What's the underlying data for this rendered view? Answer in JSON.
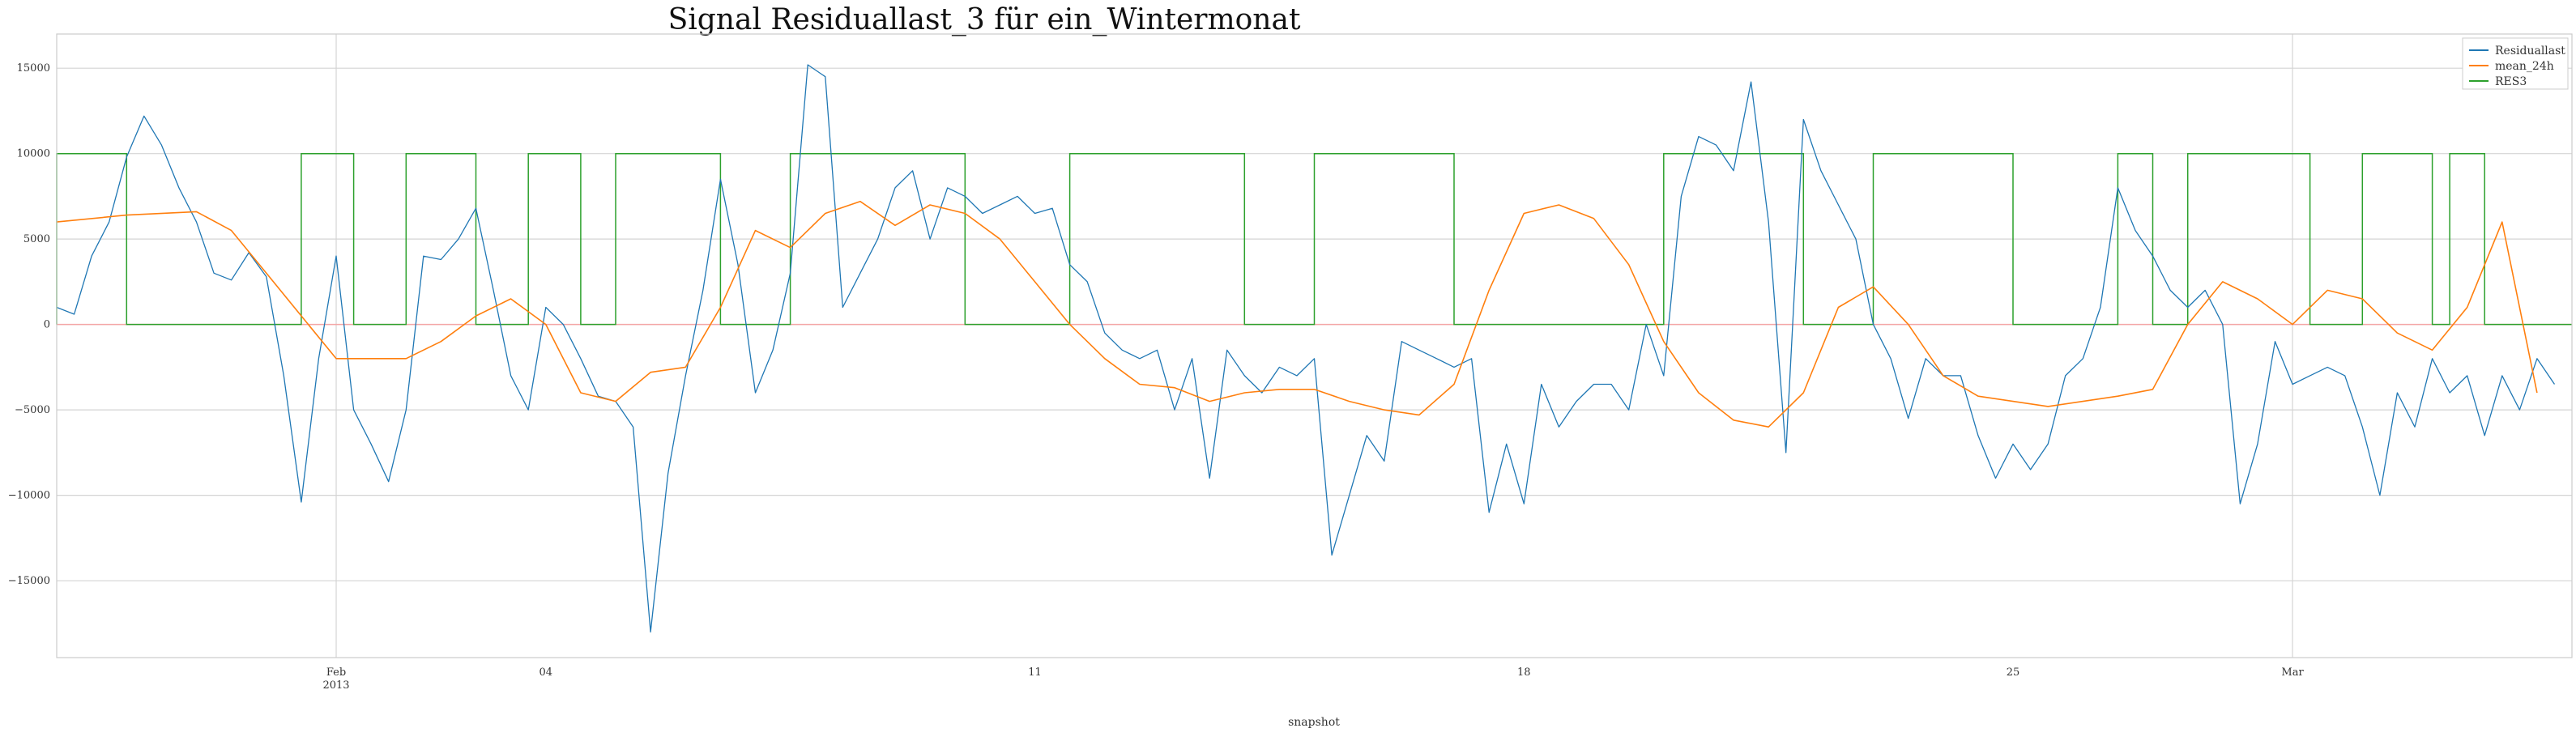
{
  "chart_data": {
    "type": "line",
    "title": "Signal Residuallast_3 für ein_Wintermonat",
    "xlabel": "snapshot",
    "ylabel": "",
    "x_range": [
      "2013-01-28",
      "2013-03-04"
    ],
    "ylim": [
      -19500,
      17000
    ],
    "yticks": [
      15000,
      10000,
      5000,
      0,
      -5000,
      -10000,
      -15000
    ],
    "ytick_labels": [
      "15000",
      "10000",
      "5000",
      "0",
      "−5000",
      "−10000",
      "−15000"
    ],
    "xticks": [
      {
        "date": "2013-02-01",
        "label": "Feb",
        "sublabel": "2013",
        "major": true
      },
      {
        "date": "2013-02-04",
        "label": "04",
        "sublabel": "",
        "major": false
      },
      {
        "date": "2013-02-11",
        "label": "11",
        "sublabel": "",
        "major": false
      },
      {
        "date": "2013-02-18",
        "label": "18",
        "sublabel": "",
        "major": false
      },
      {
        "date": "2013-02-25",
        "label": "25",
        "sublabel": "",
        "major": false
      },
      {
        "date": "2013-03-01",
        "label": "Mar",
        "sublabel": "",
        "major": true
      }
    ],
    "grid": true,
    "legend_position": "top-right",
    "series": [
      {
        "name": "Residuallast",
        "color": "#1f77b4",
        "points": [
          [
            "2013-01-28T00:00",
            1000
          ],
          [
            "2013-01-28T06:00",
            600
          ],
          [
            "2013-01-28T12:00",
            4000
          ],
          [
            "2013-01-28T18:00",
            6000
          ],
          [
            "2013-01-29T00:00",
            9800
          ],
          [
            "2013-01-29T06:00",
            12200
          ],
          [
            "2013-01-29T12:00",
            10500
          ],
          [
            "2013-01-29T18:00",
            8000
          ],
          [
            "2013-01-30T00:00",
            6000
          ],
          [
            "2013-01-30T06:00",
            3000
          ],
          [
            "2013-01-30T12:00",
            2600
          ],
          [
            "2013-01-30T18:00",
            4200
          ],
          [
            "2013-01-31T00:00",
            2800
          ],
          [
            "2013-01-31T06:00",
            -3000
          ],
          [
            "2013-01-31T12:00",
            -10400
          ],
          [
            "2013-01-31T18:00",
            -2000
          ],
          [
            "2013-02-01T00:00",
            4000
          ],
          [
            "2013-02-01T06:00",
            -5000
          ],
          [
            "2013-02-01T12:00",
            -7000
          ],
          [
            "2013-02-01T18:00",
            -9200
          ],
          [
            "2013-02-02T00:00",
            -5000
          ],
          [
            "2013-02-02T06:00",
            4000
          ],
          [
            "2013-02-02T12:00",
            3800
          ],
          [
            "2013-02-02T18:00",
            5000
          ],
          [
            "2013-02-03T00:00",
            6800
          ],
          [
            "2013-02-03T06:00",
            2000
          ],
          [
            "2013-02-03T12:00",
            -3000
          ],
          [
            "2013-02-03T18:00",
            -5000
          ],
          [
            "2013-02-04T00:00",
            1000
          ],
          [
            "2013-02-04T06:00",
            0
          ],
          [
            "2013-02-04T12:00",
            -2000
          ],
          [
            "2013-02-04T18:00",
            -4200
          ],
          [
            "2013-02-05T00:00",
            -4500
          ],
          [
            "2013-02-05T06:00",
            -6000
          ],
          [
            "2013-02-05T12:00",
            -18000
          ],
          [
            "2013-02-05T18:00",
            -8700
          ],
          [
            "2013-02-06T00:00",
            -3000
          ],
          [
            "2013-02-06T06:00",
            2000
          ],
          [
            "2013-02-06T12:00",
            8500
          ],
          [
            "2013-02-06T18:00",
            3500
          ],
          [
            "2013-02-07T00:00",
            -4000
          ],
          [
            "2013-02-07T06:00",
            -1500
          ],
          [
            "2013-02-07T12:00",
            3000
          ],
          [
            "2013-02-07T18:00",
            15200
          ],
          [
            "2013-02-08T00:00",
            14500
          ],
          [
            "2013-02-08T06:00",
            1000
          ],
          [
            "2013-02-08T12:00",
            3000
          ],
          [
            "2013-02-08T18:00",
            5000
          ],
          [
            "2013-02-09T00:00",
            8000
          ],
          [
            "2013-02-09T06:00",
            9000
          ],
          [
            "2013-02-09T12:00",
            5000
          ],
          [
            "2013-02-09T18:00",
            8000
          ],
          [
            "2013-02-10T00:00",
            7500
          ],
          [
            "2013-02-10T06:00",
            6500
          ],
          [
            "2013-02-10T12:00",
            7000
          ],
          [
            "2013-02-10T18:00",
            7500
          ],
          [
            "2013-02-11T00:00",
            6500
          ],
          [
            "2013-02-11T06:00",
            6800
          ],
          [
            "2013-02-11T12:00",
            3500
          ],
          [
            "2013-02-11T18:00",
            2500
          ],
          [
            "2013-02-12T00:00",
            -500
          ],
          [
            "2013-02-12T06:00",
            -1500
          ],
          [
            "2013-02-12T12:00",
            -2000
          ],
          [
            "2013-02-12T18:00",
            -1500
          ],
          [
            "2013-02-13T00:00",
            -5000
          ],
          [
            "2013-02-13T06:00",
            -2000
          ],
          [
            "2013-02-13T12:00",
            -9000
          ],
          [
            "2013-02-13T18:00",
            -1500
          ],
          [
            "2013-02-14T00:00",
            -3000
          ],
          [
            "2013-02-14T06:00",
            -4000
          ],
          [
            "2013-02-14T12:00",
            -2500
          ],
          [
            "2013-02-14T18:00",
            -3000
          ],
          [
            "2013-02-15T00:00",
            -2000
          ],
          [
            "2013-02-15T06:00",
            -13500
          ],
          [
            "2013-02-15T12:00",
            -10000
          ],
          [
            "2013-02-15T18:00",
            -6500
          ],
          [
            "2013-02-16T00:00",
            -8000
          ],
          [
            "2013-02-16T06:00",
            -1000
          ],
          [
            "2013-02-16T12:00",
            -1500
          ],
          [
            "2013-02-16T18:00",
            -2000
          ],
          [
            "2013-02-17T00:00",
            -2500
          ],
          [
            "2013-02-17T06:00",
            -2000
          ],
          [
            "2013-02-17T12:00",
            -11000
          ],
          [
            "2013-02-17T18:00",
            -7000
          ],
          [
            "2013-02-18T00:00",
            -10500
          ],
          [
            "2013-02-18T06:00",
            -3500
          ],
          [
            "2013-02-18T12:00",
            -6000
          ],
          [
            "2013-02-18T18:00",
            -4500
          ],
          [
            "2013-02-19T00:00",
            -3500
          ],
          [
            "2013-02-19T06:00",
            -3500
          ],
          [
            "2013-02-19T12:00",
            -5000
          ],
          [
            "2013-02-19T18:00",
            0
          ],
          [
            "2013-02-20T00:00",
            -3000
          ],
          [
            "2013-02-20T06:00",
            7500
          ],
          [
            "2013-02-20T12:00",
            11000
          ],
          [
            "2013-02-20T18:00",
            10500
          ],
          [
            "2013-02-21T00:00",
            9000
          ],
          [
            "2013-02-21T06:00",
            14200
          ],
          [
            "2013-02-21T12:00",
            6000
          ],
          [
            "2013-02-21T18:00",
            -7500
          ],
          [
            "2013-02-22T00:00",
            12000
          ],
          [
            "2013-02-22T06:00",
            9000
          ],
          [
            "2013-02-22T12:00",
            7000
          ],
          [
            "2013-02-22T18:00",
            5000
          ],
          [
            "2013-02-23T00:00",
            0
          ],
          [
            "2013-02-23T06:00",
            -2000
          ],
          [
            "2013-02-23T12:00",
            -5500
          ],
          [
            "2013-02-23T18:00",
            -2000
          ],
          [
            "2013-02-24T00:00",
            -3000
          ],
          [
            "2013-02-24T06:00",
            -3000
          ],
          [
            "2013-02-24T12:00",
            -6500
          ],
          [
            "2013-02-24T18:00",
            -9000
          ],
          [
            "2013-02-25T00:00",
            -7000
          ],
          [
            "2013-02-25T06:00",
            -8500
          ],
          [
            "2013-02-25T12:00",
            -7000
          ],
          [
            "2013-02-25T18:00",
            -3000
          ],
          [
            "2013-02-26T00:00",
            -2000
          ],
          [
            "2013-02-26T06:00",
            1000
          ],
          [
            "2013-02-26T12:00",
            8000
          ],
          [
            "2013-02-26T18:00",
            5500
          ],
          [
            "2013-02-27T00:00",
            4000
          ],
          [
            "2013-02-27T06:00",
            2000
          ],
          [
            "2013-02-27T12:00",
            1000
          ],
          [
            "2013-02-27T18:00",
            2000
          ],
          [
            "2013-02-28T00:00",
            0
          ],
          [
            "2013-02-28T06:00",
            -10500
          ],
          [
            "2013-02-28T12:00",
            -7000
          ],
          [
            "2013-02-28T18:00",
            -1000
          ],
          [
            "2013-03-01T00:00",
            -3500
          ],
          [
            "2013-03-01T06:00",
            -3000
          ],
          [
            "2013-03-01T12:00",
            -2500
          ],
          [
            "2013-03-01T18:00",
            -3000
          ],
          [
            "2013-03-02T00:00",
            -6000
          ],
          [
            "2013-03-02T06:00",
            -10000
          ],
          [
            "2013-03-02T12:00",
            -4000
          ],
          [
            "2013-03-02T18:00",
            -6000
          ],
          [
            "2013-03-03T00:00",
            -2000
          ],
          [
            "2013-03-03T06:00",
            -4000
          ],
          [
            "2013-03-03T12:00",
            -3000
          ],
          [
            "2013-03-03T18:00",
            -6500
          ],
          [
            "2013-03-04T00:00",
            -3000
          ],
          [
            "2013-03-04T06:00",
            -5000
          ],
          [
            "2013-03-04T12:00",
            -2000
          ],
          [
            "2013-03-04T18:00",
            -3500
          ]
        ]
      },
      {
        "name": "mean_24h",
        "color": "#ff7f0e",
        "points": [
          [
            "2013-01-28T00:00",
            6000
          ],
          [
            "2013-01-29T00:00",
            6400
          ],
          [
            "2013-01-30T00:00",
            6600
          ],
          [
            "2013-01-30T12:00",
            5500
          ],
          [
            "2013-01-31T00:00",
            3000
          ],
          [
            "2013-02-01T00:00",
            -2000
          ],
          [
            "2013-02-02T00:00",
            -2000
          ],
          [
            "2013-02-02T12:00",
            -1000
          ],
          [
            "2013-02-03T00:00",
            500
          ],
          [
            "2013-02-03T12:00",
            1500
          ],
          [
            "2013-02-04T00:00",
            0
          ],
          [
            "2013-02-04T12:00",
            -4000
          ],
          [
            "2013-02-05T00:00",
            -4500
          ],
          [
            "2013-02-05T12:00",
            -2800
          ],
          [
            "2013-02-06T00:00",
            -2500
          ],
          [
            "2013-02-06T12:00",
            1000
          ],
          [
            "2013-02-07T00:00",
            5500
          ],
          [
            "2013-02-07T12:00",
            4500
          ],
          [
            "2013-02-08T00:00",
            6500
          ],
          [
            "2013-02-08T12:00",
            7200
          ],
          [
            "2013-02-09T00:00",
            5800
          ],
          [
            "2013-02-09T12:00",
            7000
          ],
          [
            "2013-02-10T00:00",
            6500
          ],
          [
            "2013-02-10T12:00",
            5000
          ],
          [
            "2013-02-11T00:00",
            2500
          ],
          [
            "2013-02-11T12:00",
            0
          ],
          [
            "2013-02-12T00:00",
            -2000
          ],
          [
            "2013-02-12T12:00",
            -3500
          ],
          [
            "2013-02-13T00:00",
            -3700
          ],
          [
            "2013-02-13T12:00",
            -4500
          ],
          [
            "2013-02-14T00:00",
            -4000
          ],
          [
            "2013-02-14T12:00",
            -3800
          ],
          [
            "2013-02-15T00:00",
            -3800
          ],
          [
            "2013-02-15T12:00",
            -4500
          ],
          [
            "2013-02-16T00:00",
            -5000
          ],
          [
            "2013-02-16T12:00",
            -5300
          ],
          [
            "2013-02-17T00:00",
            -3500
          ],
          [
            "2013-02-17T12:00",
            2000
          ],
          [
            "2013-02-18T00:00",
            6500
          ],
          [
            "2013-02-18T12:00",
            7000
          ],
          [
            "2013-02-19T00:00",
            6200
          ],
          [
            "2013-02-19T12:00",
            3500
          ],
          [
            "2013-02-20T00:00",
            -1000
          ],
          [
            "2013-02-20T12:00",
            -4000
          ],
          [
            "2013-02-21T00:00",
            -5600
          ],
          [
            "2013-02-21T12:00",
            -6000
          ],
          [
            "2013-02-22T00:00",
            -4000
          ],
          [
            "2013-02-22T12:00",
            1000
          ],
          [
            "2013-02-23T00:00",
            2200
          ],
          [
            "2013-02-23T12:00",
            0
          ],
          [
            "2013-02-24T00:00",
            -3000
          ],
          [
            "2013-02-24T12:00",
            -4200
          ],
          [
            "2013-02-25T00:00",
            -4500
          ],
          [
            "2013-02-25T12:00",
            -4800
          ],
          [
            "2013-02-26T00:00",
            -4500
          ],
          [
            "2013-02-26T12:00",
            -4200
          ],
          [
            "2013-02-27T00:00",
            -3800
          ],
          [
            "2013-02-27T12:00",
            0
          ],
          [
            "2013-02-28T00:00",
            2500
          ],
          [
            "2013-02-28T12:00",
            1500
          ],
          [
            "2013-03-01T00:00",
            0
          ],
          [
            "2013-03-01T12:00",
            2000
          ],
          [
            "2013-03-02T00:00",
            1500
          ],
          [
            "2013-03-02T12:00",
            -500
          ],
          [
            "2013-03-03T00:00",
            -1500
          ],
          [
            "2013-03-03T12:00",
            1000
          ],
          [
            "2013-03-04T00:00",
            6000
          ],
          [
            "2013-03-04T12:00",
            -4000
          ]
        ]
      },
      {
        "name": "RES3",
        "color": "#2ca02c",
        "high": 10000,
        "low": 0,
        "high_intervals": [
          [
            "2013-01-28T00:00",
            "2013-01-29T00:00"
          ],
          [
            "2013-01-31T12:00",
            "2013-02-01T06:00"
          ],
          [
            "2013-02-02T00:00",
            "2013-02-03T00:00"
          ],
          [
            "2013-02-03T18:00",
            "2013-02-04T12:00"
          ],
          [
            "2013-02-05T00:00",
            "2013-02-06T12:00"
          ],
          [
            "2013-02-07T12:00",
            "2013-02-10T00:00"
          ],
          [
            "2013-02-11T12:00",
            "2013-02-14T00:00"
          ],
          [
            "2013-02-15T00:00",
            "2013-02-17T00:00"
          ],
          [
            "2013-02-20T00:00",
            "2013-02-22T00:00"
          ],
          [
            "2013-02-23T00:00",
            "2013-02-25T00:00"
          ],
          [
            "2013-02-26T12:00",
            "2013-02-27T00:00"
          ],
          [
            "2013-02-27T12:00",
            "2013-03-01T06:00"
          ],
          [
            "2013-03-02T00:00",
            "2013-03-03T00:00"
          ],
          [
            "2013-03-03T06:00",
            "2013-03-03T18:00"
          ]
        ]
      }
    ]
  }
}
